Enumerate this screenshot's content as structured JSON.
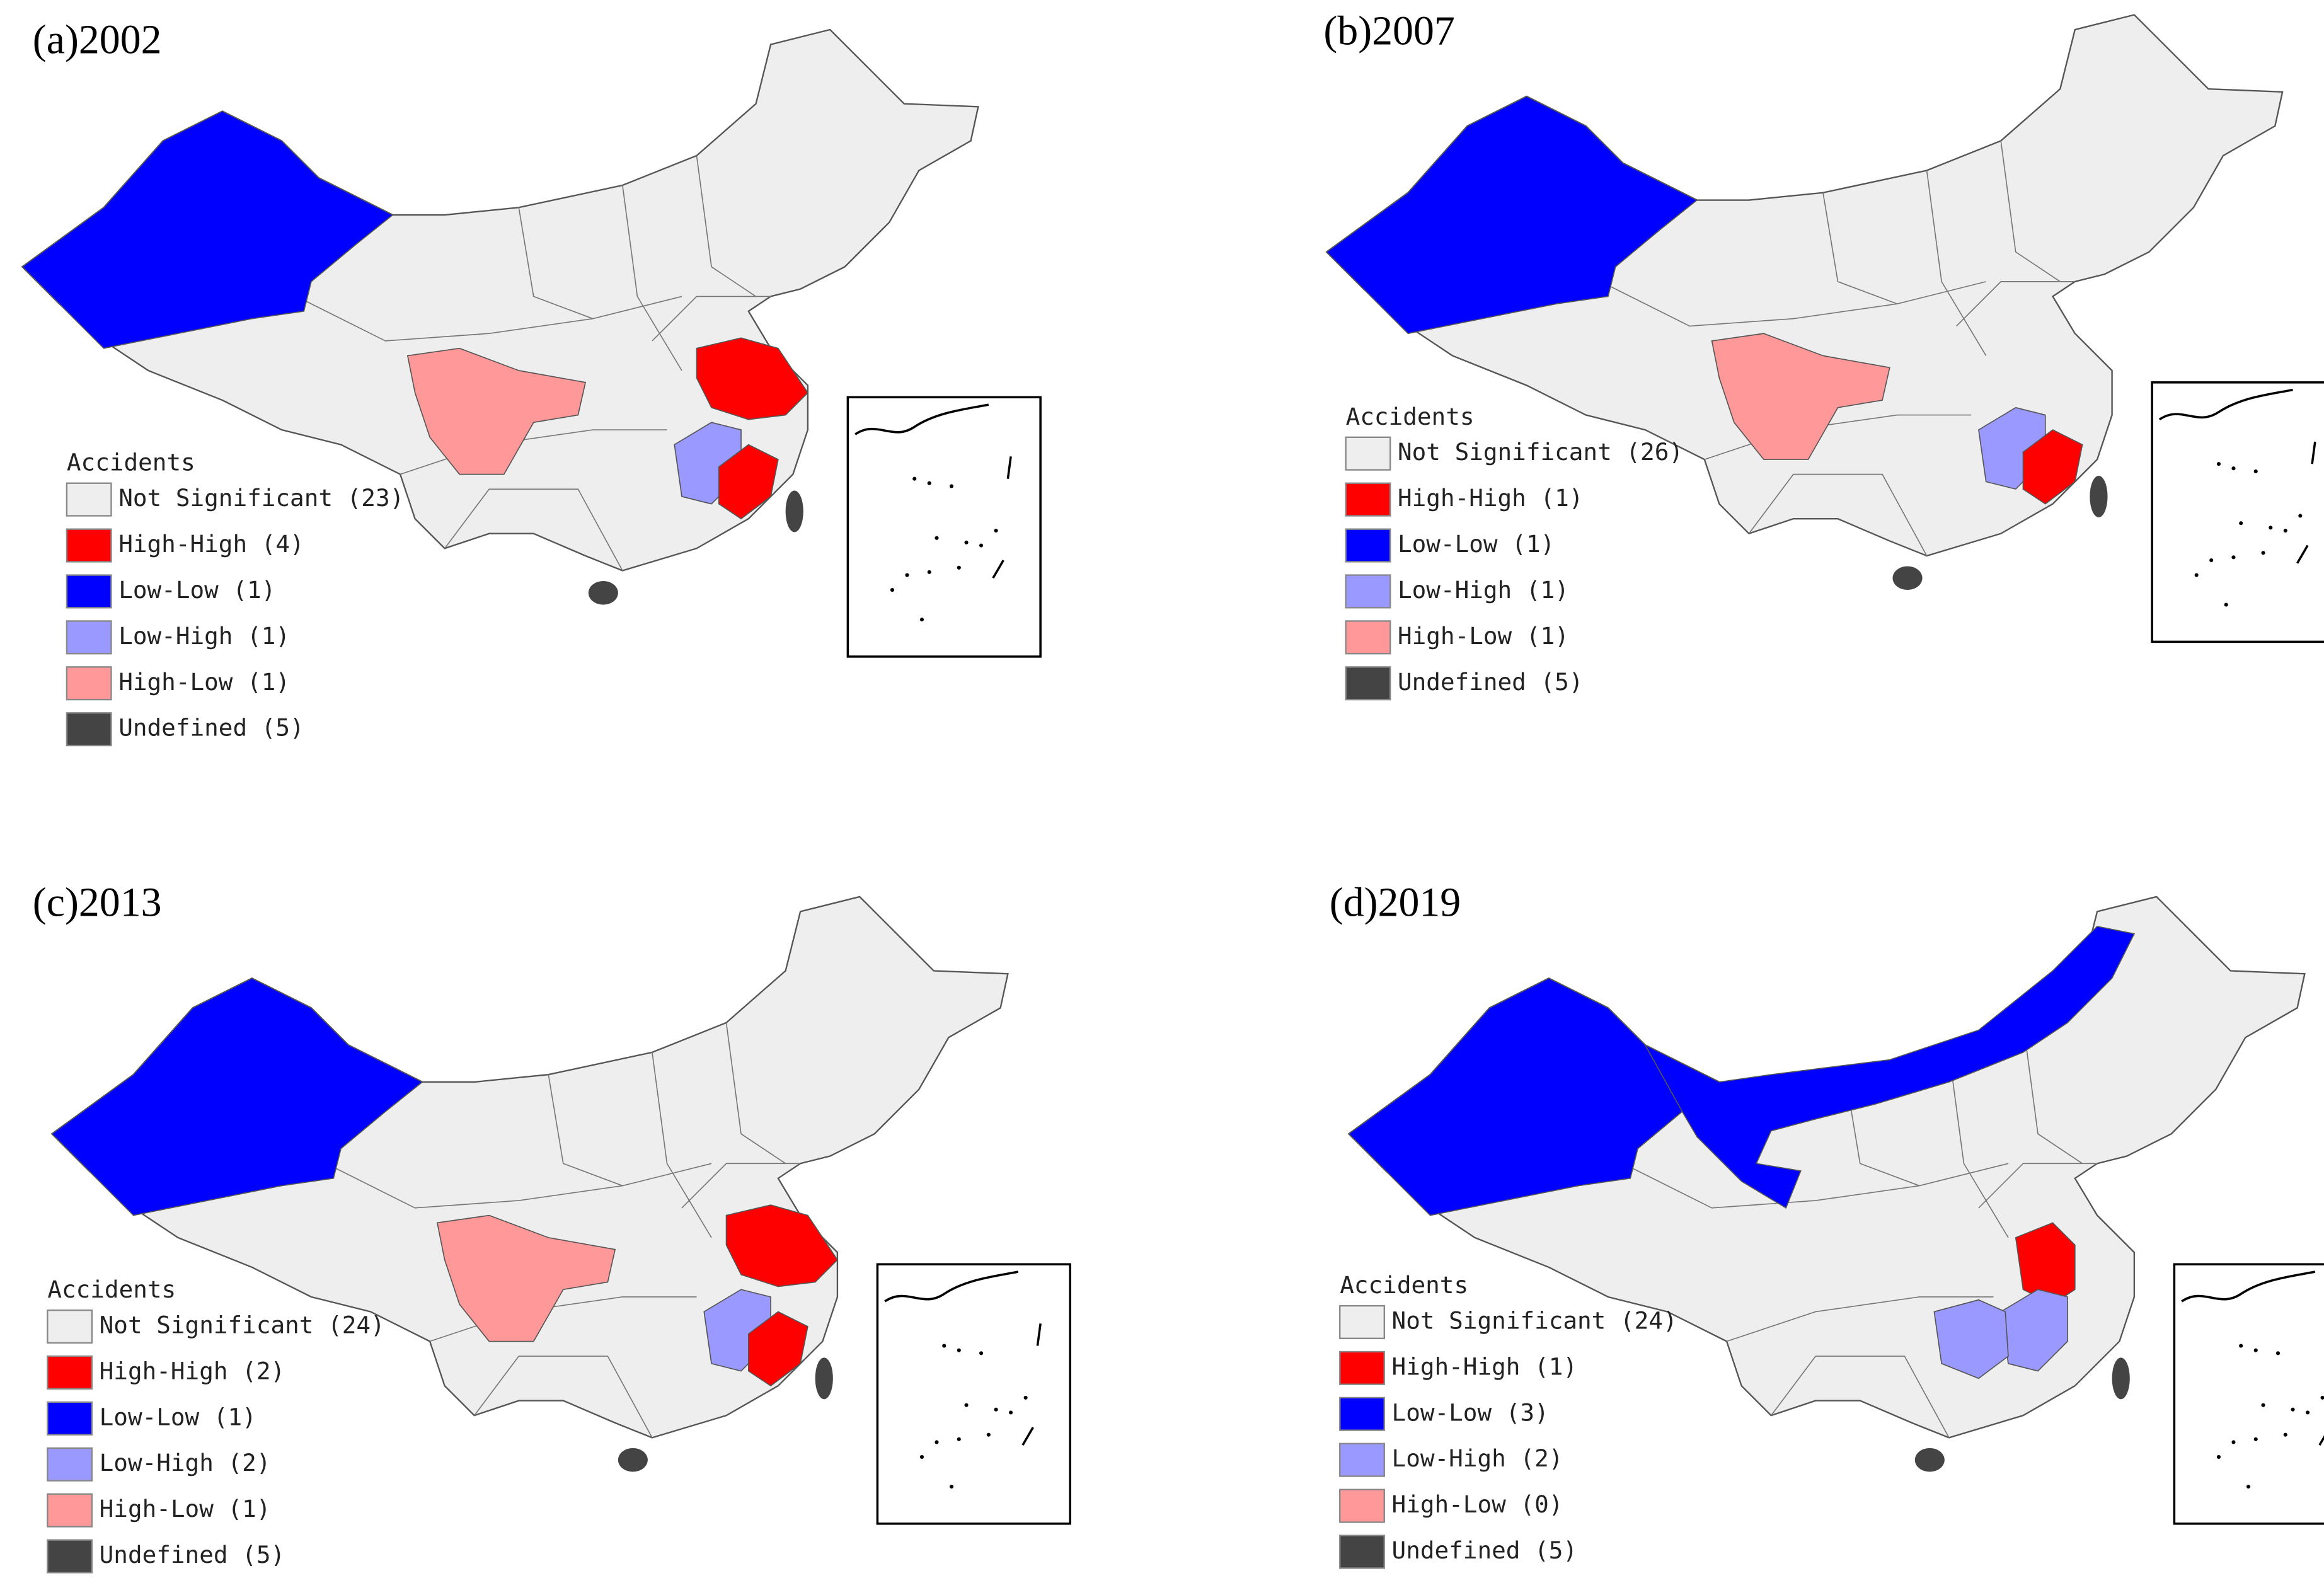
{
  "panels": [
    {
      "title": "(a)2002",
      "legend_title": "Accidents",
      "legend": [
        {
          "label": "Not Significant (23)",
          "color": "#eeeeee"
        },
        {
          "label": "High-High (4)",
          "color": "#ff0000"
        },
        {
          "label": "Low-Low (1)",
          "color": "#0000ff"
        },
        {
          "label": "Low-High (1)",
          "color": "#9999ff"
        },
        {
          "label": "High-Low (1)",
          "color": "#ff9999"
        },
        {
          "label": "Undefined (5)",
          "color": "#444444"
        }
      ]
    },
    {
      "title": "(b)2007",
      "legend_title": "Accidents",
      "legend": [
        {
          "label": "Not Significant (26)",
          "color": "#eeeeee"
        },
        {
          "label": "High-High (1)",
          "color": "#ff0000"
        },
        {
          "label": "Low-Low (1)",
          "color": "#0000ff"
        },
        {
          "label": "Low-High (1)",
          "color": "#9999ff"
        },
        {
          "label": "High-Low (1)",
          "color": "#ff9999"
        },
        {
          "label": "Undefined (5)",
          "color": "#444444"
        }
      ]
    },
    {
      "title": "(c)2013",
      "legend_title": "Accidents",
      "legend": [
        {
          "label": "Not Significant (24)",
          "color": "#eeeeee"
        },
        {
          "label": "High-High (2)",
          "color": "#ff0000"
        },
        {
          "label": "Low-Low (1)",
          "color": "#0000ff"
        },
        {
          "label": "Low-High (2)",
          "color": "#9999ff"
        },
        {
          "label": "High-Low (1)",
          "color": "#ff9999"
        },
        {
          "label": "Undefined (5)",
          "color": "#444444"
        }
      ]
    },
    {
      "title": "(d)2019",
      "legend_title": "Accidents",
      "legend": [
        {
          "label": "Not Significant (24)",
          "color": "#eeeeee"
        },
        {
          "label": "High-High (1)",
          "color": "#ff0000"
        },
        {
          "label": "Low-Low (3)",
          "color": "#0000ff"
        },
        {
          "label": "Low-High (2)",
          "color": "#9999ff"
        },
        {
          "label": "High-Low (0)",
          "color": "#ff9999"
        },
        {
          "label": "Undefined (5)",
          "color": "#444444"
        }
      ]
    }
  ]
}
